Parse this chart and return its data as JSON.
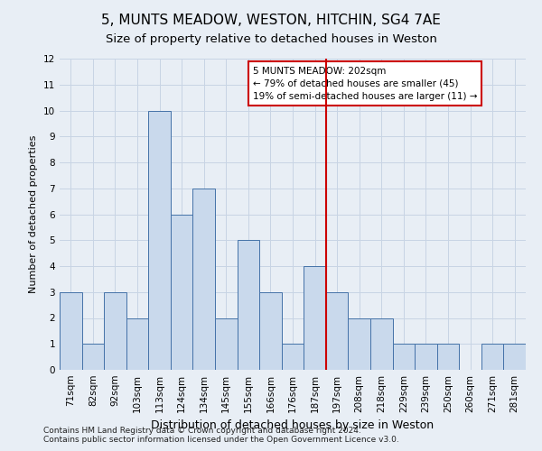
{
  "title": "5, MUNTS MEADOW, WESTON, HITCHIN, SG4 7AE",
  "subtitle": "Size of property relative to detached houses in Weston",
  "xlabel": "Distribution of detached houses by size in Weston",
  "ylabel": "Number of detached properties",
  "categories": [
    "71sqm",
    "82sqm",
    "92sqm",
    "103sqm",
    "113sqm",
    "124sqm",
    "134sqm",
    "145sqm",
    "155sqm",
    "166sqm",
    "176sqm",
    "187sqm",
    "197sqm",
    "208sqm",
    "218sqm",
    "229sqm",
    "239sqm",
    "250sqm",
    "260sqm",
    "271sqm",
    "281sqm"
  ],
  "values": [
    3,
    1,
    3,
    2,
    10,
    6,
    7,
    2,
    5,
    3,
    1,
    4,
    3,
    2,
    2,
    1,
    1,
    1,
    0,
    1,
    1
  ],
  "bar_color": "#c9d9ec",
  "bar_edge_color": "#4472a8",
  "highlight_line_index": 12,
  "highlight_color": "#cc0000",
  "annotation_text": "5 MUNTS MEADOW: 202sqm\n← 79% of detached houses are smaller (45)\n19% of semi-detached houses are larger (11) →",
  "annotation_box_color": "#cc0000",
  "ylim": [
    0,
    12
  ],
  "yticks": [
    0,
    1,
    2,
    3,
    4,
    5,
    6,
    7,
    8,
    9,
    10,
    11,
    12
  ],
  "grid_color": "#c8d4e4",
  "bg_color": "#e8eef5",
  "footer": "Contains HM Land Registry data © Crown copyright and database right 2024.\nContains public sector information licensed under the Open Government Licence v3.0.",
  "title_fontsize": 11,
  "subtitle_fontsize": 9.5,
  "ylabel_fontsize": 8,
  "xlabel_fontsize": 9,
  "tick_fontsize": 7.5,
  "annotation_fontsize": 7.5,
  "footer_fontsize": 6.5
}
